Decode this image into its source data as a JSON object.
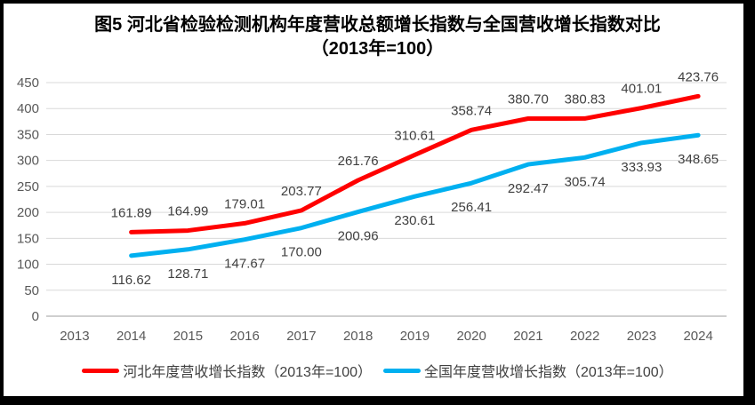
{
  "chart_data": {
    "type": "line",
    "title": "图5  河北省检验检测机构年度营收总额增长指数与全国营收增长指数对比",
    "subtitle": "（2013年=100）",
    "categories": [
      "2013",
      "2014",
      "2015",
      "2016",
      "2017",
      "2018",
      "2019",
      "2020",
      "2021",
      "2022",
      "2023",
      "2024"
    ],
    "xlabel": "",
    "ylabel": "",
    "ylim": [
      0,
      450
    ],
    "ytick_step": 50,
    "yticks": [
      0,
      50,
      100,
      150,
      200,
      250,
      300,
      350,
      400,
      450
    ],
    "grid": true,
    "data_labels": true,
    "data_label_decimals": 2,
    "legend_position": "bottom",
    "series": [
      {
        "name": "河北年度营收增长指数（2013年=100）",
        "color": "#FF0000",
        "first_category": "2014",
        "values": [
          161.89,
          164.99,
          179.01,
          203.77,
          261.76,
          310.61,
          358.74,
          380.7,
          380.83,
          401.01,
          423.76
        ],
        "label_side": "above"
      },
      {
        "name": "全国年度营收增长指数（2013年=100）",
        "color": "#00B0F0",
        "first_category": "2014",
        "values": [
          116.62,
          128.71,
          147.67,
          170.0,
          200.96,
          230.61,
          256.41,
          292.47,
          305.74,
          333.93,
          348.65
        ],
        "label_side": "below"
      }
    ],
    "colors": {
      "background": "#FFFFFF",
      "gridline": "#D9D9D9",
      "axis_line": "#BFBFBF",
      "tick_label": "#595959",
      "data_label": "#404040",
      "title": "#000000",
      "legend_text": "#404040",
      "frame_border": "#000000"
    }
  }
}
